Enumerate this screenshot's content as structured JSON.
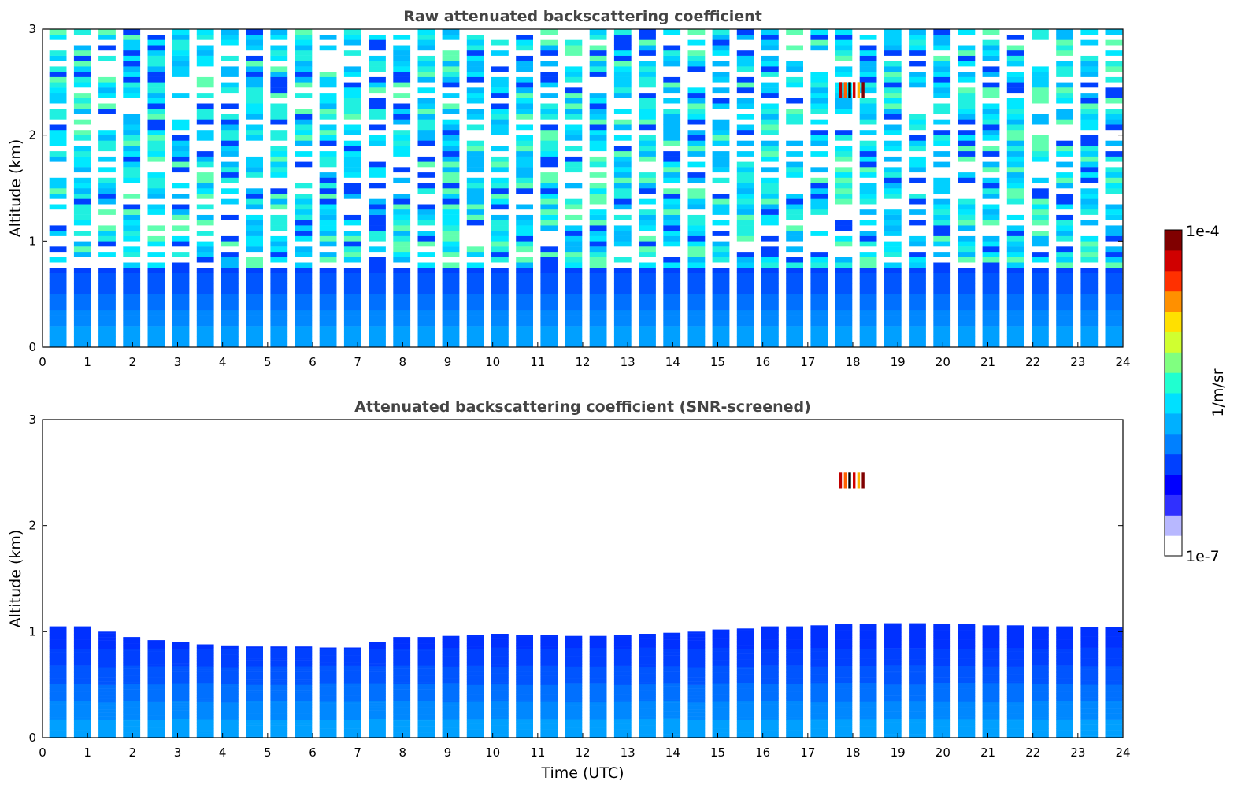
{
  "chart_data": [
    {
      "type": "heatmap",
      "title": "Raw attenuated backscattering coefficient",
      "xlabel": "",
      "ylabel": "Altitude (km)",
      "xlim": [
        0,
        24
      ],
      "ylim": [
        0,
        3
      ],
      "xticks": [
        "0",
        "1",
        "2",
        "3",
        "4",
        "5",
        "6",
        "7",
        "8",
        "9",
        "10",
        "11",
        "12",
        "13",
        "14",
        "15",
        "16",
        "17",
        "18",
        "19",
        "20",
        "21",
        "22",
        "23",
        "24"
      ],
      "yticks": [
        "0",
        "1",
        "2",
        "3"
      ],
      "profile_blocks": 44,
      "noise_onset_km": 0.7,
      "features": [
        {
          "description": "strong backscatter patch",
          "time_utc": [
            17.7,
            18.3
          ],
          "altitude_km": [
            2.35,
            2.5
          ]
        }
      ]
    },
    {
      "type": "heatmap",
      "title": "Attenuated backscattering coefficient (SNR-screened)",
      "xlabel": "Time (UTC)",
      "ylabel": "Altitude (km)",
      "xlim": [
        0,
        24
      ],
      "ylim": [
        0,
        3
      ],
      "xticks": [
        "0",
        "1",
        "2",
        "3",
        "4",
        "5",
        "6",
        "7",
        "8",
        "9",
        "10",
        "11",
        "12",
        "13",
        "14",
        "15",
        "16",
        "17",
        "18",
        "19",
        "20",
        "21",
        "22",
        "23",
        "24"
      ],
      "yticks": [
        "0",
        "1",
        "2",
        "3"
      ],
      "profile_blocks": 44,
      "layer_top_km": [
        1.05,
        1.05,
        1.0,
        0.95,
        0.92,
        0.9,
        0.88,
        0.87,
        0.86,
        0.86,
        0.86,
        0.85,
        0.85,
        0.9,
        0.95,
        0.95,
        0.96,
        0.97,
        0.98,
        0.97,
        0.97,
        0.96,
        0.96,
        0.97,
        0.98,
        0.99,
        1.0,
        1.02,
        1.03,
        1.05,
        1.05,
        1.06,
        1.07,
        1.07,
        1.08,
        1.08,
        1.07,
        1.07,
        1.06,
        1.06,
        1.05,
        1.05,
        1.04,
        1.04
      ],
      "features": [
        {
          "description": "strong backscatter patch",
          "time_utc": [
            17.7,
            18.3
          ],
          "altitude_km": [
            2.35,
            2.5
          ]
        }
      ]
    }
  ],
  "colorbar": {
    "label": "1/m/sr",
    "max_label": "1e-4",
    "min_label": "1e-7",
    "colors": [
      "#ffffff",
      "#b8b8ff",
      "#3030ff",
      "#0000ff",
      "#0040ff",
      "#0080ff",
      "#00b0ff",
      "#00e0ff",
      "#20ffd0",
      "#80ff80",
      "#d0ff30",
      "#ffe000",
      "#ff9000",
      "#ff3000",
      "#d00000",
      "#800000"
    ]
  }
}
